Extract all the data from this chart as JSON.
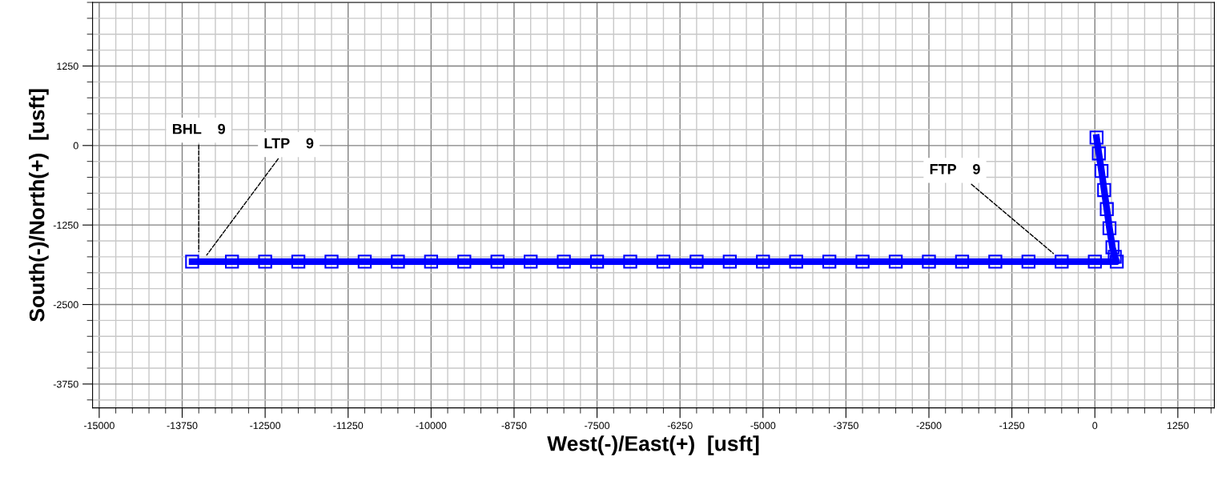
{
  "chart_data": {
    "type": "line",
    "xlabel": "West(-)/East(+)  [usft]",
    "ylabel": "South(-)/North(+)  [usft]",
    "series": [
      {
        "color": "#0000ff",
        "marker": "square",
        "x": [
          25,
          60,
          100,
          140,
          180,
          220,
          265,
          300,
          330,
          0,
          -500,
          -1000,
          -1500,
          -2000,
          -2500,
          -3000,
          -3500,
          -4000,
          -4500,
          -5000,
          -5500,
          -6000,
          -6500,
          -7000,
          -7500,
          -8000,
          -8500,
          -9000,
          -9500,
          -10000,
          -10500,
          -11000,
          -11500,
          -12000,
          -12500,
          -13000,
          -13600
        ],
        "values": [
          125,
          -125,
          -400,
          -700,
          -1000,
          -1300,
          -1600,
          -1750,
          -1825,
          -1825,
          -1825,
          -1825,
          -1825,
          -1825,
          -1825,
          -1825,
          -1825,
          -1825,
          -1825,
          -1825,
          -1825,
          -1825,
          -1825,
          -1825,
          -1825,
          -1825,
          -1825,
          -1825,
          -1825,
          -1825,
          -1825,
          -1825,
          -1825,
          -1825,
          -1825,
          -1825,
          -1825
        ]
      }
    ],
    "xlim": [
      -15100,
      1800
    ],
    "ylim": [
      -4125,
      2250
    ],
    "xticks": [
      -15000,
      -13750,
      -12500,
      -11250,
      -10000,
      -8750,
      -7500,
      -6250,
      -5000,
      -3750,
      -2500,
      -1250,
      0,
      1250
    ],
    "yticks": [
      -3750,
      -2500,
      -1250,
      0,
      1250
    ],
    "grid": true,
    "annotations": [
      {
        "text": "BHL    9",
        "x": -13500,
        "y": -1700
      },
      {
        "text": "LTP    9",
        "x": -13400,
        "y": -1750
      },
      {
        "text": "FTP    9",
        "x": -600,
        "y": -1720
      }
    ]
  }
}
